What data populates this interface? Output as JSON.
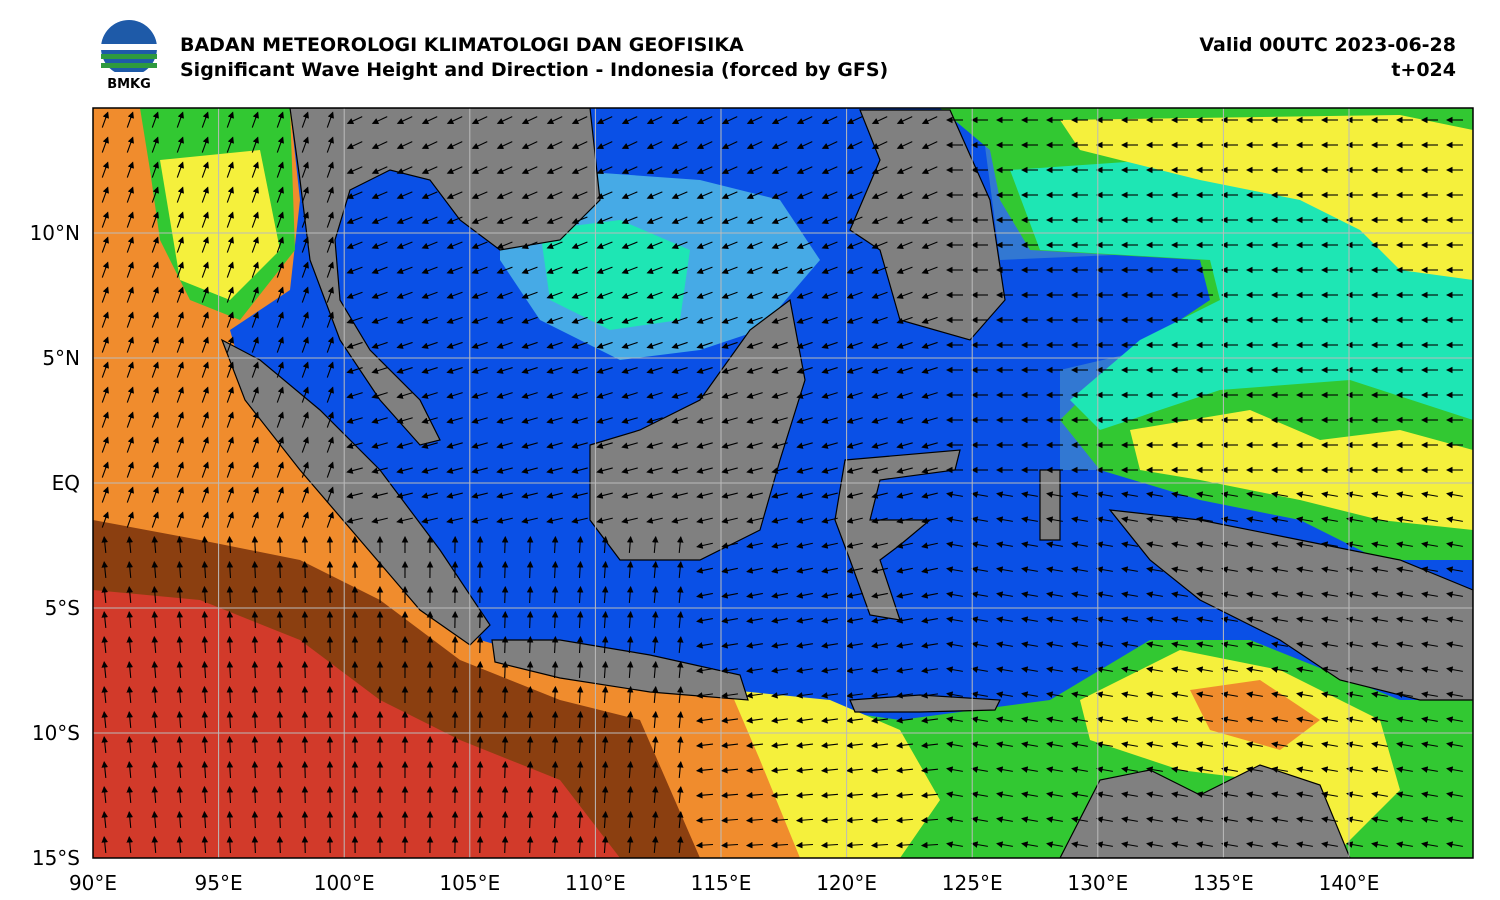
{
  "header": {
    "logo_text": "BMKG",
    "title": "BADAN METEOROLOGI KLIMATOLOGI DAN GEOFISIKA",
    "subtitle": "Significant Wave Height and Direction - Indonesia (forced by GFS)",
    "valid": "Valid 00UTC 2023-06-28",
    "step": "t+024"
  },
  "map": {
    "lat_labels": [
      "10°N",
      "5°N",
      "EQ",
      "5°S",
      "10°S",
      "15°S"
    ],
    "lon_labels": [
      "90°E",
      "95°E",
      "100°E",
      "105°E",
      "110°E",
      "115°E",
      "120°E",
      "125°E",
      "130°E",
      "135°E",
      "140°E"
    ]
  }
}
